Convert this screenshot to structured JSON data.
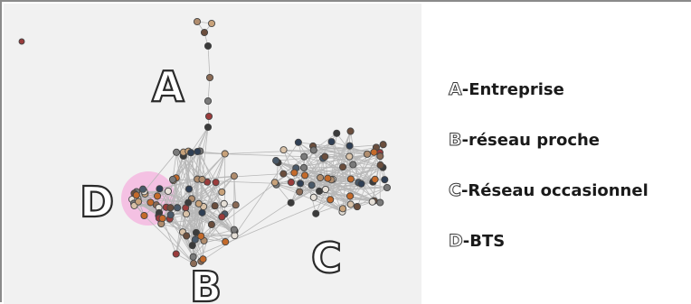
{
  "legend": {
    "a_letter": "A",
    "a_text": "-Entreprise",
    "b_letter": "B",
    "b_text": "-réseau proche",
    "c_letter": "C",
    "c_text": "-Réseau occasionnel",
    "d_letter": "D",
    "d_text": "-BTS"
  },
  "graph": {
    "labels": [
      "A",
      "B",
      "C",
      "D"
    ],
    "highlight_color": "#f4b8e0",
    "edge_color": "#b8b8b8",
    "node_border_color": "#444444"
  }
}
